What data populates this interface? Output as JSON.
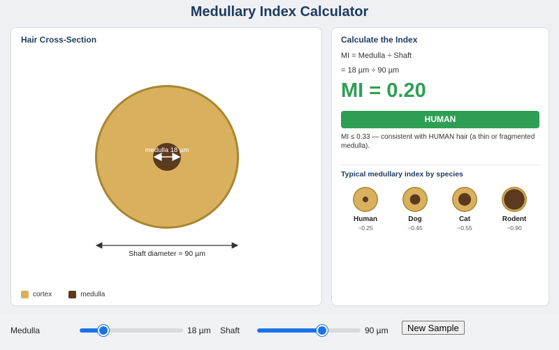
{
  "title": "Medullary Index Calculator",
  "cross_section": {
    "title": "Hair Cross-Section",
    "medulla_label": "medulla 18 µm",
    "shaft_label": "Shaft diameter = 90 µm",
    "colors": {
      "cortex": "#d9b05e",
      "cortex_edge": "#a88630",
      "medulla": "#5b3a1e"
    },
    "legend": [
      {
        "label": "cortex",
        "color": "#d9b05e"
      },
      {
        "label": "medulla",
        "color": "#5b3a1e"
      }
    ]
  },
  "calc": {
    "title": "Calculate the Index",
    "formula": "MI = Medulla ÷ Shaft",
    "substitution": "= 18 µm ÷ 90 µm",
    "result": "MI = 0.20",
    "verdict": "HUMAN",
    "note": "MI ≤ 0.33 — consistent with HUMAN hair (a thin or fragmented medulla).",
    "accent": "#2e9e54"
  },
  "typical": {
    "title": "Typical medullary index by species",
    "species": [
      {
        "name": "Human",
        "value": "~0.25",
        "ratio": 0.25
      },
      {
        "name": "Dog",
        "value": "~0.45",
        "ratio": 0.45
      },
      {
        "name": "Cat",
        "value": "~0.55",
        "ratio": 0.55
      },
      {
        "name": "Rodent",
        "value": "~0.90",
        "ratio": 0.9
      }
    ]
  },
  "controls": {
    "medulla_label": "Medulla",
    "medulla_value": "18 µm",
    "medulla_fraction": 0.23,
    "shaft_label": "Shaft",
    "shaft_value": "90 µm",
    "shaft_fraction": 0.63,
    "new_sample_label": "New Sample"
  }
}
